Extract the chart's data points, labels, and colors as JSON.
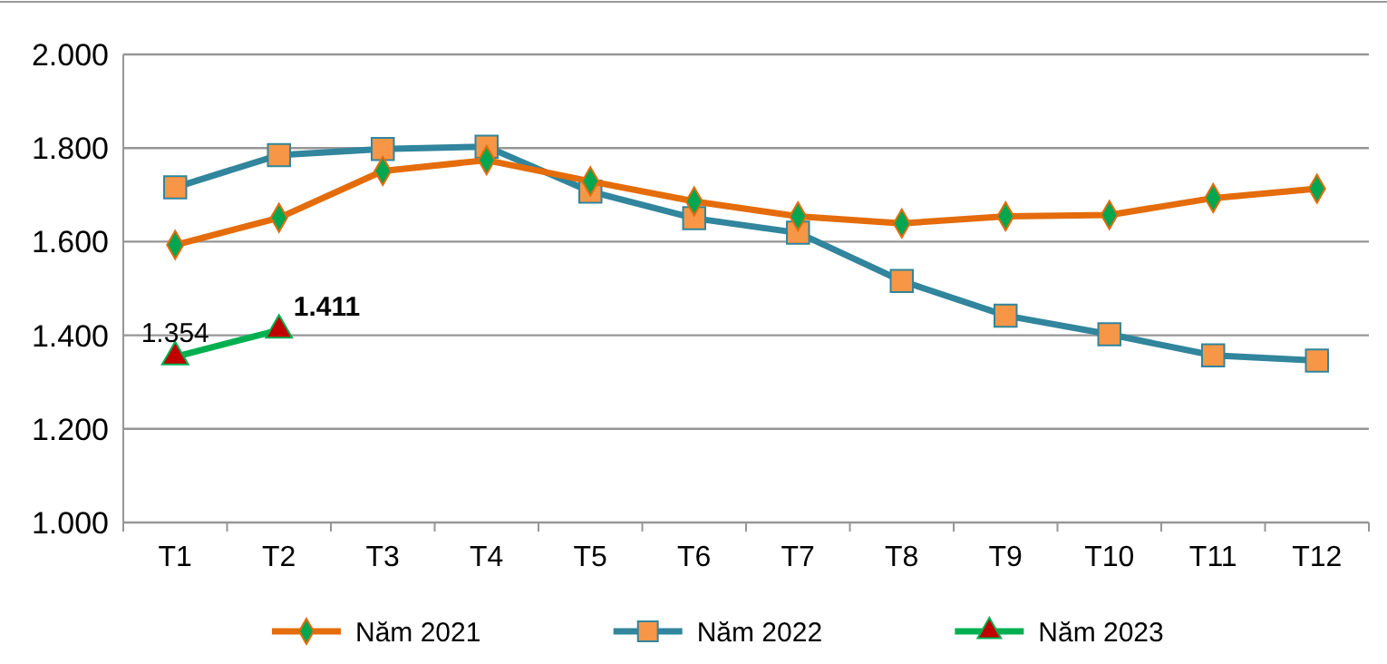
{
  "chart_data": {
    "type": "line",
    "categories": [
      "T1",
      "T2",
      "T3",
      "T4",
      "T5",
      "T6",
      "T7",
      "T8",
      "T9",
      "T10",
      "T11",
      "T12"
    ],
    "series": [
      {
        "name": "Năm 2021",
        "color": "#e46c0a",
        "marker": "diamond",
        "values": [
          1593,
          1651,
          1751,
          1774,
          1729,
          1686,
          1654,
          1639,
          1654,
          1657,
          1693,
          1713
        ]
      },
      {
        "name": "Năm 2022",
        "color": "#31859c",
        "marker": "square",
        "values": [
          1716,
          1785,
          1798,
          1803,
          1707,
          1650,
          1619,
          1516,
          1442,
          1402,
          1357,
          1346
        ]
      },
      {
        "name": "Năm 2023",
        "color": "#00b050",
        "marker": "triangle",
        "values": [
          1354,
          1411,
          null,
          null,
          null,
          null,
          null,
          null,
          null,
          null,
          null,
          null
        ],
        "value_labels": [
          "1.354",
          "1.411",
          null,
          null,
          null,
          null,
          null,
          null,
          null,
          null,
          null,
          null
        ]
      }
    ],
    "ylim": [
      1000,
      2000
    ],
    "yticks": [
      {
        "value": 1000,
        "label": "1.000"
      },
      {
        "value": 1200,
        "label": "1.200"
      },
      {
        "value": 1400,
        "label": "1.400"
      },
      {
        "value": 1600,
        "label": "1.600"
      },
      {
        "value": 1800,
        "label": "1.800"
      },
      {
        "value": 2000,
        "label": "2.000"
      }
    ],
    "grid": "y",
    "legend": "bottom",
    "line_style": "solid"
  }
}
